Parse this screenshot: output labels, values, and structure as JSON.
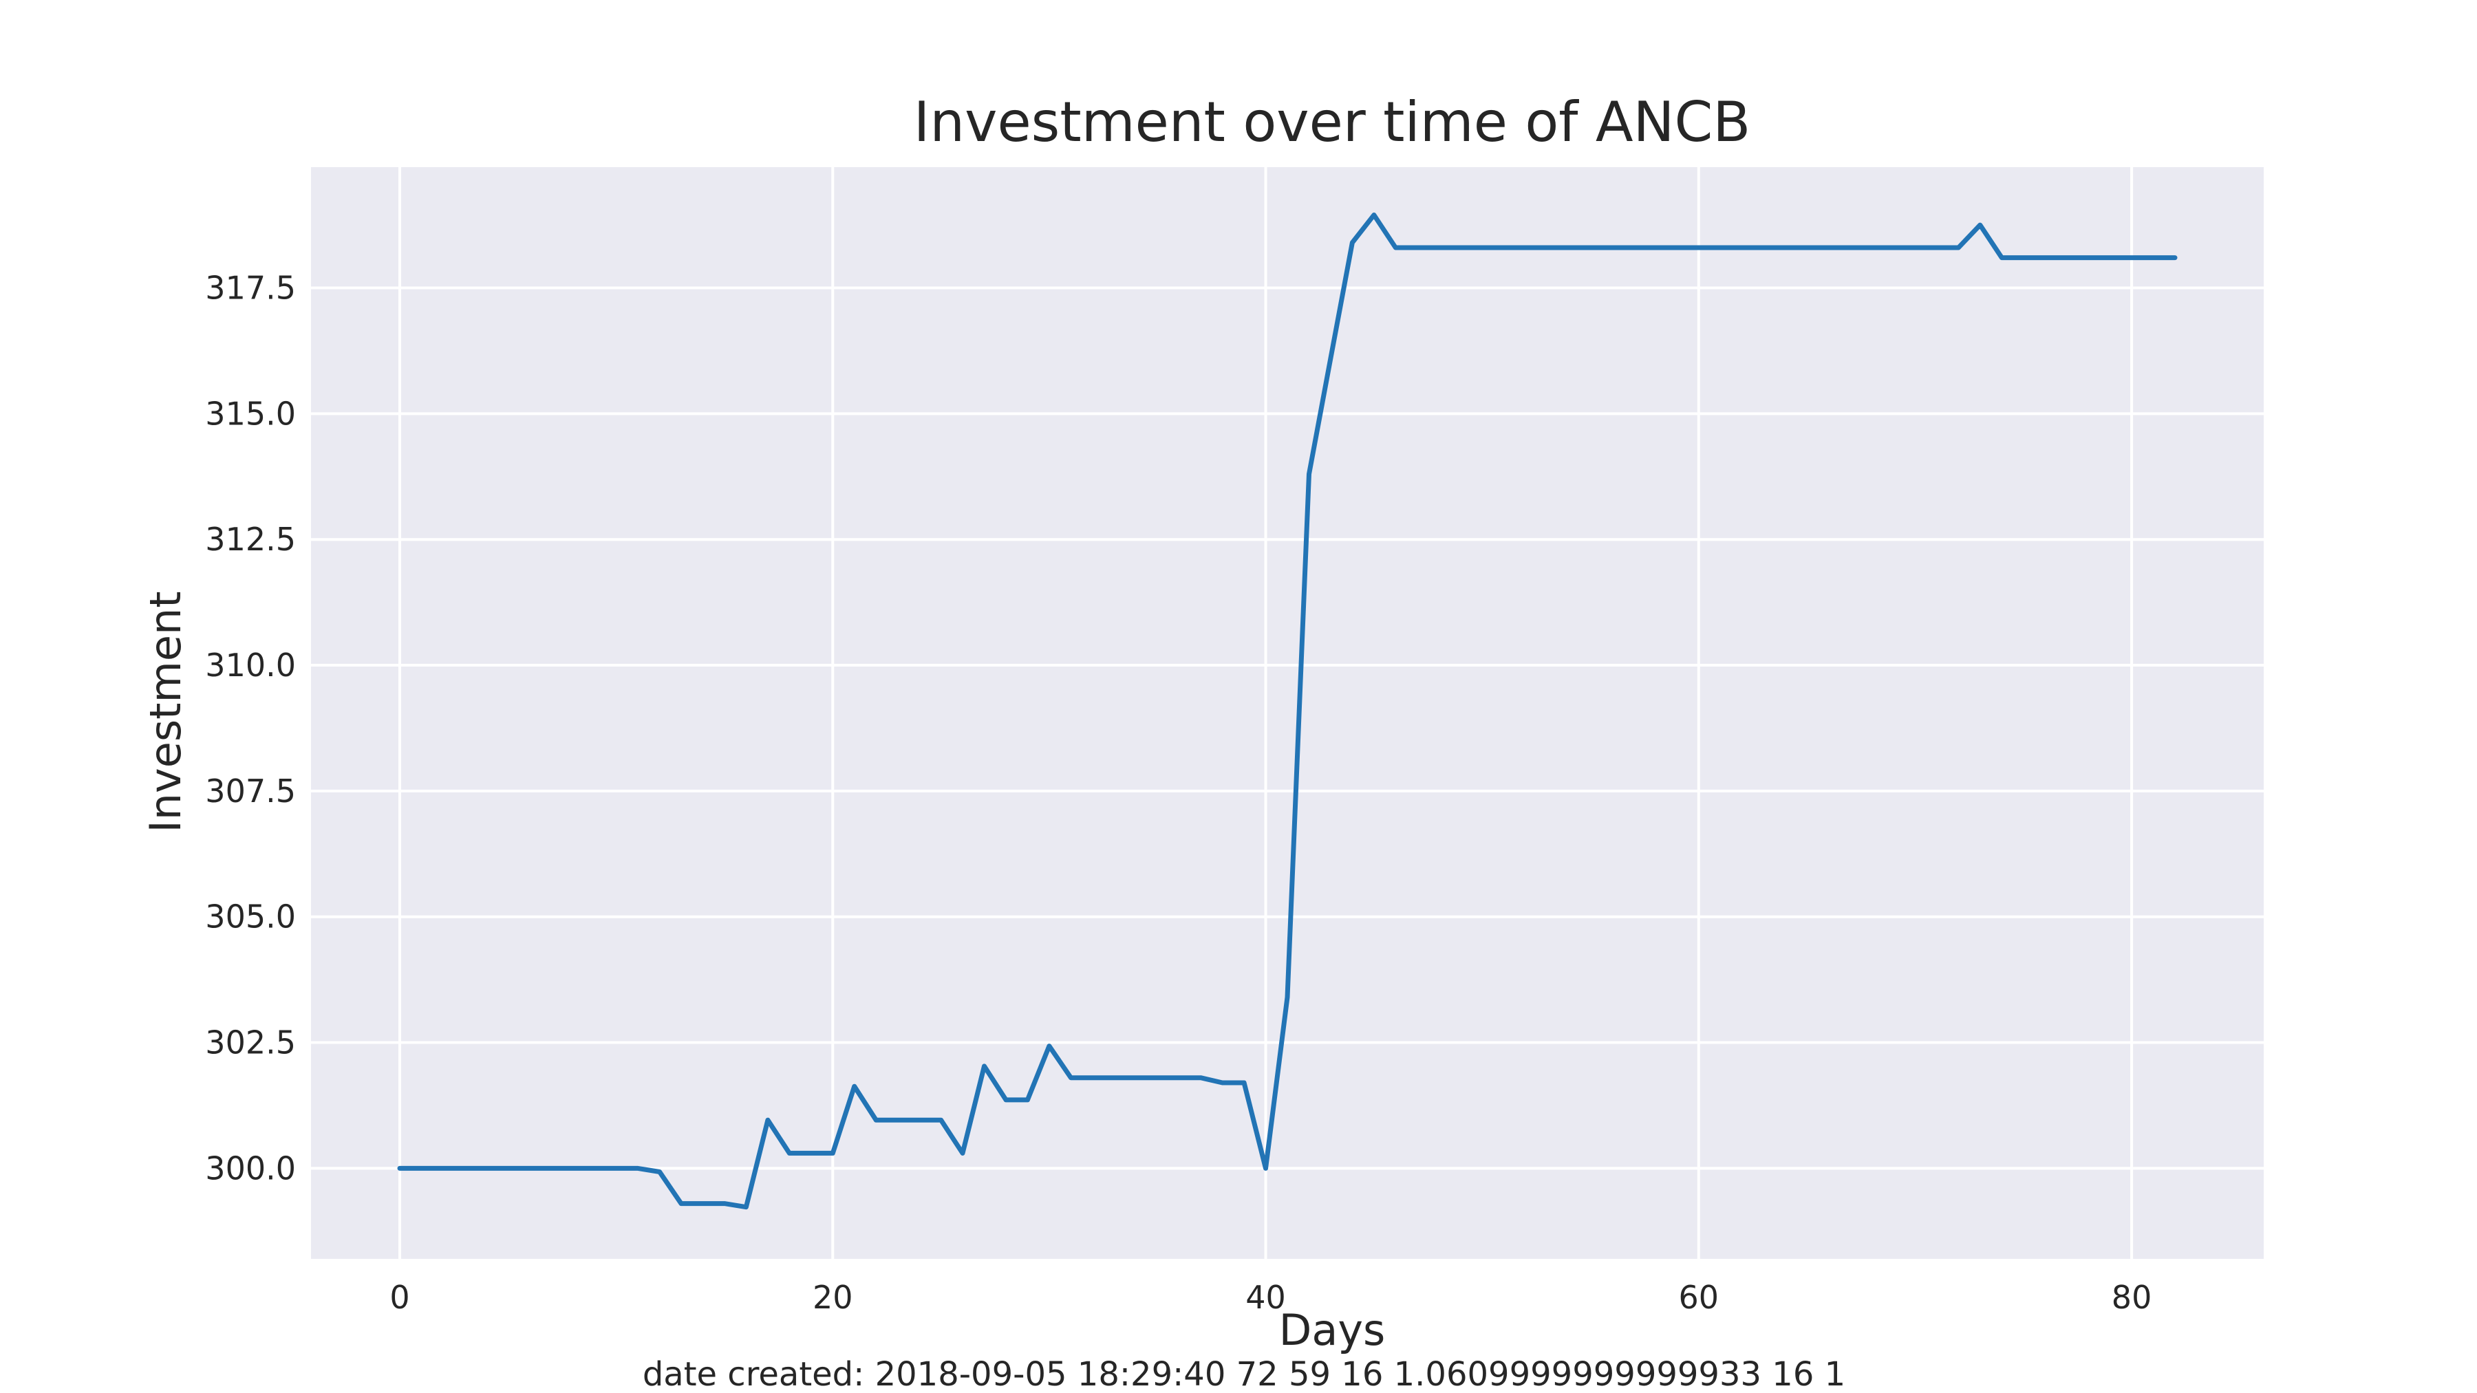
{
  "chart_data": {
    "type": "line",
    "title": "Investment over time of ANCB",
    "xlabel": "Days",
    "ylabel": "Investment",
    "footer": "date created: 2018-09-05 18:29:40 72 59 16 1.0609999999999933 16 1",
    "xlim": [
      -4.1,
      86.1
    ],
    "ylim": [
      298.2,
      319.9
    ],
    "xticks": [
      0,
      20,
      40,
      60,
      80
    ],
    "yticks": [
      300.0,
      302.5,
      305.0,
      307.5,
      310.0,
      312.5,
      315.0,
      317.5
    ],
    "xtick_labels": [
      "0",
      "20",
      "40",
      "60",
      "80"
    ],
    "ytick_labels": [
      "300.0",
      "302.5",
      "305.0",
      "307.5",
      "310.0",
      "312.5",
      "315.0",
      "317.5"
    ],
    "grid": true,
    "colors": {
      "background": "#eaeaf2",
      "line": "#2274b5",
      "grid": "#ffffff"
    },
    "series": [
      {
        "x": [
          0,
          1,
          2,
          3,
          4,
          5,
          6,
          7,
          8,
          9,
          10,
          11,
          12,
          13,
          14,
          15,
          16,
          17,
          18,
          19,
          20,
          21,
          22,
          23,
          24,
          25,
          26,
          27,
          28,
          29,
          30,
          31,
          32,
          33,
          34,
          35,
          36,
          37,
          38,
          39,
          40,
          41,
          42,
          43,
          44,
          45,
          46,
          47,
          48,
          49,
          50,
          51,
          52,
          53,
          54,
          55,
          56,
          57,
          58,
          59,
          60,
          61,
          62,
          63,
          64,
          65,
          66,
          67,
          68,
          69,
          70,
          71,
          72,
          73,
          74,
          75,
          76,
          77,
          78,
          79,
          80,
          81,
          82
        ],
        "values": [
          300.0,
          300.0,
          300.0,
          300.0,
          300.0,
          300.0,
          300.0,
          300.0,
          300.0,
          300.0,
          300.0,
          300.0,
          299.93,
          299.3,
          299.3,
          299.3,
          299.23,
          300.96,
          300.3,
          300.3,
          300.3,
          301.63,
          300.96,
          300.96,
          300.96,
          300.96,
          300.3,
          302.03,
          301.36,
          301.36,
          302.43,
          301.8,
          301.8,
          301.8,
          301.8,
          301.8,
          301.8,
          301.8,
          301.7,
          301.7,
          300.0,
          303.4,
          313.8,
          316.1,
          318.4,
          318.95,
          318.3,
          318.3,
          318.3,
          318.3,
          318.3,
          318.3,
          318.3,
          318.3,
          318.3,
          318.3,
          318.3,
          318.3,
          318.3,
          318.3,
          318.3,
          318.3,
          318.3,
          318.3,
          318.3,
          318.3,
          318.3,
          318.3,
          318.3,
          318.3,
          318.3,
          318.3,
          318.3,
          318.75,
          318.1,
          318.1,
          318.1,
          318.1,
          318.1,
          318.1,
          318.1,
          318.1,
          318.1
        ]
      }
    ]
  }
}
